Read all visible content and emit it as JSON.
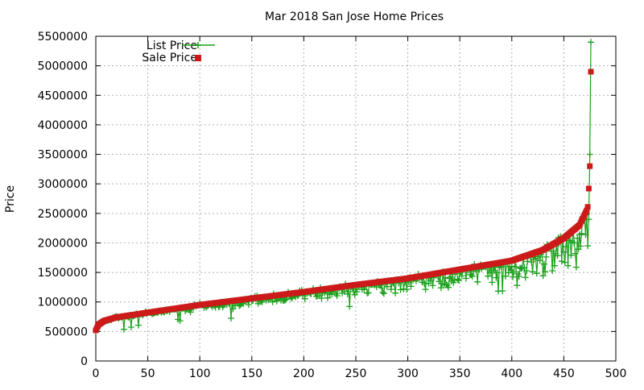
{
  "chart_data": {
    "type": "scatter",
    "title": "Mar 2018 San Jose Home Prices",
    "xlabel": "",
    "ylabel": "Price",
    "xlim": [
      0,
      500
    ],
    "ylim": [
      0,
      5500000
    ],
    "x_ticks": [
      0,
      50,
      100,
      150,
      200,
      250,
      300,
      350,
      400,
      450,
      500
    ],
    "y_ticks": [
      0,
      500000,
      1000000,
      1500000,
      2000000,
      2500000,
      3000000,
      3500000,
      4000000,
      4500000,
      5000000,
      5500000
    ],
    "x_tick_labels": [
      "0",
      "50",
      "100",
      "150",
      "200",
      "250",
      "300",
      "350",
      "400",
      "450",
      "500"
    ],
    "y_tick_labels": [
      "0",
      "500000",
      "1000000",
      "1500000",
      "2000000",
      "2500000",
      "3000000",
      "3500000",
      "4000000",
      "4500000",
      "5000000",
      "5500000"
    ],
    "grid": true,
    "legend_position": "top-left",
    "n_points": 477,
    "sale_price_knots": [
      [
        0,
        520000
      ],
      [
        1,
        560000
      ],
      [
        3,
        620000
      ],
      [
        8,
        680000
      ],
      [
        20,
        740000
      ],
      [
        50,
        820000
      ],
      [
        100,
        950000
      ],
      [
        150,
        1060000
      ],
      [
        200,
        1170000
      ],
      [
        250,
        1290000
      ],
      [
        300,
        1400000
      ],
      [
        350,
        1550000
      ],
      [
        400,
        1700000
      ],
      [
        430,
        1880000
      ],
      [
        450,
        2080000
      ],
      [
        465,
        2300000
      ],
      [
        472,
        2550000
      ],
      [
        473,
        2610000
      ],
      [
        474,
        2920000
      ],
      [
        475,
        3300000
      ],
      [
        476,
        4900000
      ]
    ],
    "list_price_extremes": [
      [
        476,
        5400000
      ],
      [
        475,
        3500000
      ],
      [
        474,
        2400000
      ]
    ],
    "series": [
      {
        "name": "List Price",
        "color": "#1aa01a",
        "marker": "plus",
        "line": true
      },
      {
        "name": "Sale Price",
        "color": "#cc1a1a",
        "marker": "square",
        "line": false
      }
    ]
  }
}
